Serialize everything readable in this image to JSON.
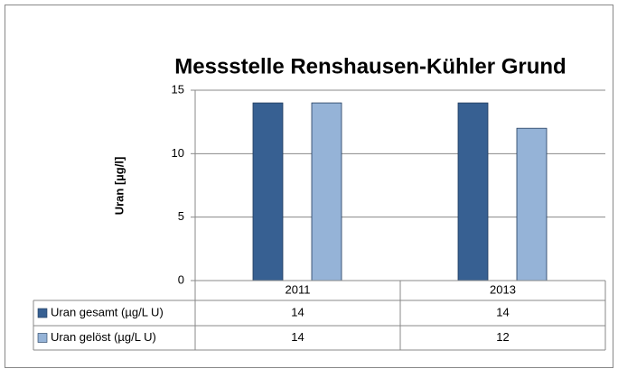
{
  "chart_data": {
    "type": "bar",
    "title": "Messstelle Renshausen-Kühler Grund",
    "y_label": "Uran [µg/l]",
    "categories": [
      "2011",
      "2013"
    ],
    "series": [
      {
        "name": "Uran gesamt (µg/L U)",
        "color": "#376092",
        "values": [
          14,
          14
        ]
      },
      {
        "name": "Uran gelöst (µg/L U)",
        "color": "#95b3d7",
        "values": [
          14,
          12
        ]
      }
    ],
    "ylim": [
      0,
      15
    ],
    "yticks": [
      0,
      5,
      10,
      15
    ],
    "grid": true,
    "data_table": true
  }
}
